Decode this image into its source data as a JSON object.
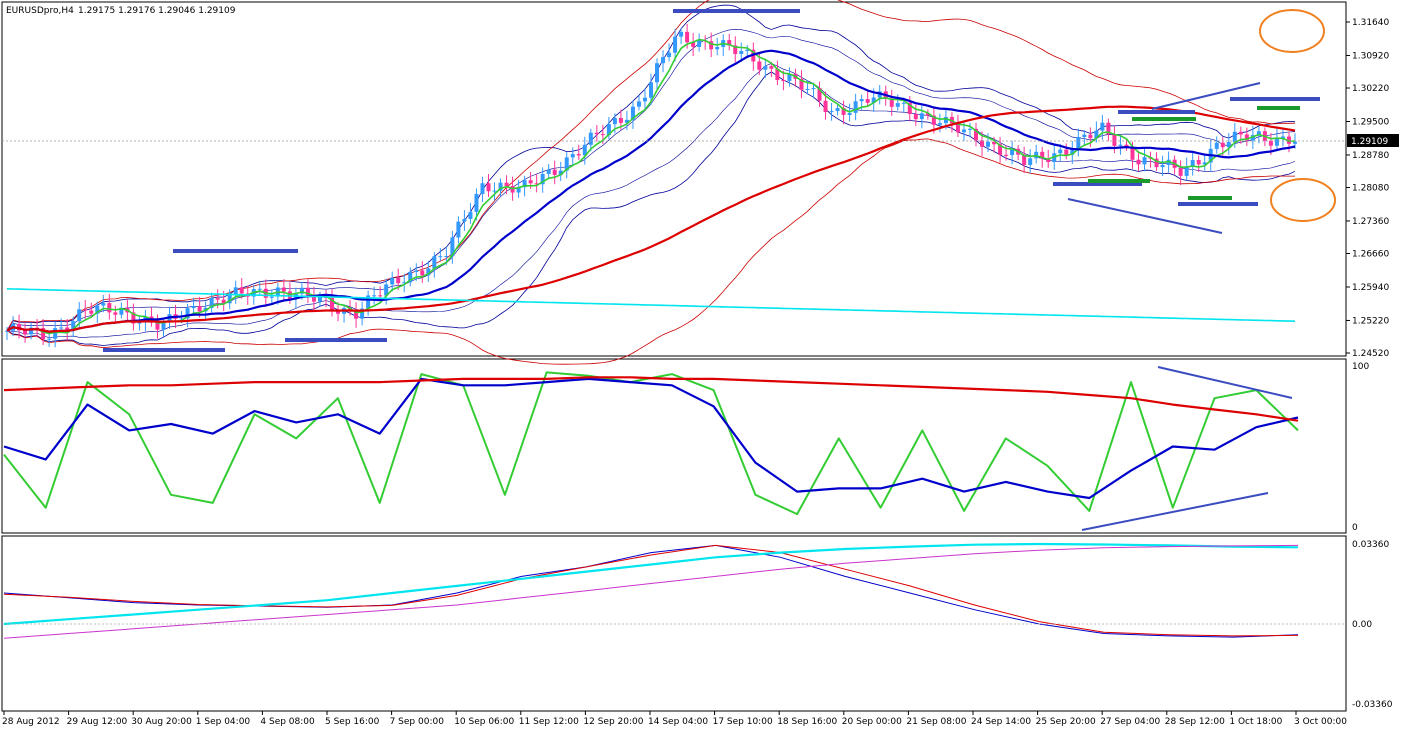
{
  "header": {
    "symbol_timeframe": "EURUSDpro,H4",
    "ohlc": "1.29175 1.29176 1.29046 1.29109"
  },
  "chart_data": [
    {
      "type": "candlestick",
      "panel": "price",
      "title": "EURUSDpro,H4  1.29175 1.29176 1.29046 1.29109",
      "last_price": "1.29109",
      "y_ticks": [
        "1.31640",
        "1.30920",
        "1.30220",
        "1.29500",
        "1.28780",
        "1.28080",
        "1.27360",
        "1.26660",
        "1.25940",
        "1.25220",
        "1.24520"
      ],
      "ylim": [
        1.2452,
        1.3164
      ],
      "x_ticks": [
        "28 Aug 2012",
        "29 Aug 12:00",
        "30 Aug 20:00",
        "1 Sep 04:00",
        "4 Sep 08:00",
        "5 Sep 16:00",
        "7 Sep 00:00",
        "10 Sep 06:00",
        "11 Sep 12:00",
        "12 Sep 20:00",
        "14 Sep 04:00",
        "17 Sep 10:00",
        "18 Sep 16:00",
        "20 Sep 00:00",
        "21 Sep 08:00",
        "24 Sep 14:00",
        "25 Sep 20:00",
        "27 Sep 04:00",
        "28 Sep 12:00",
        "1 Oct 18:00",
        "3 Oct 00:00"
      ],
      "price_path": [
        [
          0,
          1.25
        ],
        [
          0.03,
          1.249
        ],
        [
          0.06,
          1.254
        ],
        [
          0.09,
          1.2545
        ],
        [
          0.12,
          1.2505
        ],
        [
          0.15,
          1.256
        ],
        [
          0.18,
          1.2575
        ],
        [
          0.21,
          1.259
        ],
        [
          0.24,
          1.2565
        ],
        [
          0.27,
          1.254
        ],
        [
          0.31,
          1.262
        ],
        [
          0.34,
          1.266
        ],
        [
          0.37,
          1.282
        ],
        [
          0.4,
          1.28
        ],
        [
          0.43,
          1.286
        ],
        [
          0.46,
          1.292
        ],
        [
          0.49,
          1.299
        ],
        [
          0.52,
          1.313
        ],
        [
          0.55,
          1.312
        ],
        [
          0.58,
          1.308
        ],
        [
          0.61,
          1.304
        ],
        [
          0.64,
          1.297
        ],
        [
          0.67,
          1.3
        ],
        [
          0.7,
          1.298
        ],
        [
          0.73,
          1.294
        ],
        [
          0.76,
          1.291
        ],
        [
          0.79,
          1.286
        ],
        [
          0.82,
          1.289
        ],
        [
          0.85,
          1.293
        ],
        [
          0.88,
          1.287
        ],
        [
          0.91,
          1.284
        ],
        [
          0.94,
          1.29
        ],
        [
          0.97,
          1.292
        ],
        [
          1.0,
          1.2911
        ]
      ],
      "colors": {
        "bull": "#3399ff",
        "bear": "#ff3399",
        "ma_fast": "#33cc33",
        "ma_mid": "#0000cc",
        "ma_slow": "#dd0000",
        "ma_long": "#00e5ee"
      }
    },
    {
      "type": "line",
      "panel": "oscillator",
      "y_ticks": [
        "100",
        "0"
      ],
      "ylim": [
        0,
        100
      ],
      "series": [
        {
          "color": "#33cc33",
          "values": [
            45,
            12,
            90,
            70,
            20,
            15,
            70,
            55,
            80,
            15,
            95,
            88,
            20,
            96,
            94,
            90,
            95,
            85,
            20,
            8,
            55,
            12,
            60,
            10,
            55,
            38,
            10,
            90,
            12,
            80,
            85,
            60
          ]
        },
        {
          "color": "#0000cc",
          "values": [
            50,
            42,
            76,
            60,
            64,
            58,
            72,
            65,
            70,
            58,
            92,
            88,
            88,
            90,
            92,
            90,
            88,
            75,
            40,
            22,
            24,
            24,
            30,
            22,
            28,
            22,
            18,
            35,
            50,
            48,
            62,
            68
          ]
        },
        {
          "color": "#dd0000",
          "values": [
            85,
            86,
            87,
            88,
            88,
            89,
            90,
            90,
            90,
            90,
            91,
            92,
            92,
            92,
            93,
            93,
            92,
            92,
            91,
            90,
            89,
            88,
            87,
            86,
            85,
            84,
            82,
            80,
            76,
            73,
            70,
            66
          ]
        }
      ]
    },
    {
      "type": "line",
      "panel": "macd",
      "y_ticks": [
        "0.03360",
        "0.00",
        "-0.03360"
      ],
      "ylim": [
        -0.0336,
        0.0336
      ],
      "series": [
        {
          "color": "#0000cc",
          "values": [
            0.013,
            0.011,
            0.009,
            0.008,
            0.0075,
            0.007,
            0.008,
            0.013,
            0.02,
            0.024,
            0.03,
            0.033,
            0.028,
            0.02,
            0.013,
            0.006,
            0.0,
            -0.004,
            -0.005,
            -0.0055,
            -0.0045
          ]
        },
        {
          "color": "#dd0000",
          "values": [
            0.0125,
            0.0112,
            0.0095,
            0.0082,
            0.0076,
            0.0072,
            0.0078,
            0.012,
            0.019,
            0.024,
            0.029,
            0.033,
            0.03,
            0.023,
            0.016,
            0.008,
            0.001,
            -0.0035,
            -0.0045,
            -0.005,
            -0.0048
          ]
        },
        {
          "color": "#00e5ee",
          "values": [
            0.0,
            0.002,
            0.004,
            0.006,
            0.008,
            0.01,
            0.013,
            0.016,
            0.019,
            0.022,
            0.025,
            0.028,
            0.03,
            0.0315,
            0.0325,
            0.0333,
            0.0336,
            0.0334,
            0.033,
            0.0325,
            0.0322
          ]
        },
        {
          "color": "#cc33cc",
          "values": [
            -0.006,
            -0.004,
            -0.002,
            0.0,
            0.002,
            0.004,
            0.006,
            0.008,
            0.011,
            0.014,
            0.017,
            0.02,
            0.023,
            0.0255,
            0.0275,
            0.0295,
            0.031,
            0.032,
            0.0325,
            0.0328,
            0.033
          ]
        }
      ]
    }
  ]
}
